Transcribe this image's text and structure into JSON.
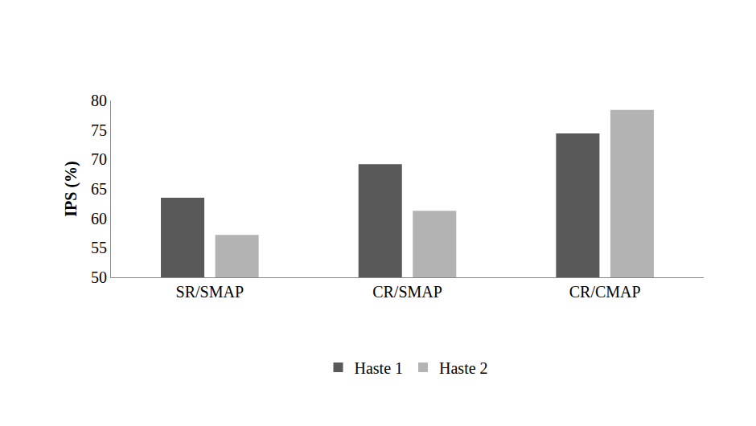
{
  "chart_data": {
    "type": "bar",
    "y_label": "IPS (%)",
    "categories": [
      "SR/SMAP",
      "CR/SMAP",
      "CR/CMAP"
    ],
    "series": [
      {
        "name": "Haste 1",
        "color": "#595959",
        "values": [
          63.5,
          69.2,
          74.4
        ]
      },
      {
        "name": "Haste 2",
        "color": "#b3b3b3",
        "values": [
          57.2,
          61.3,
          78.4
        ]
      }
    ],
    "ylim": [
      50,
      80
    ],
    "yticks": [
      50,
      55,
      60,
      65,
      70,
      75,
      80
    ],
    "grid": false,
    "legend": "bottom"
  }
}
